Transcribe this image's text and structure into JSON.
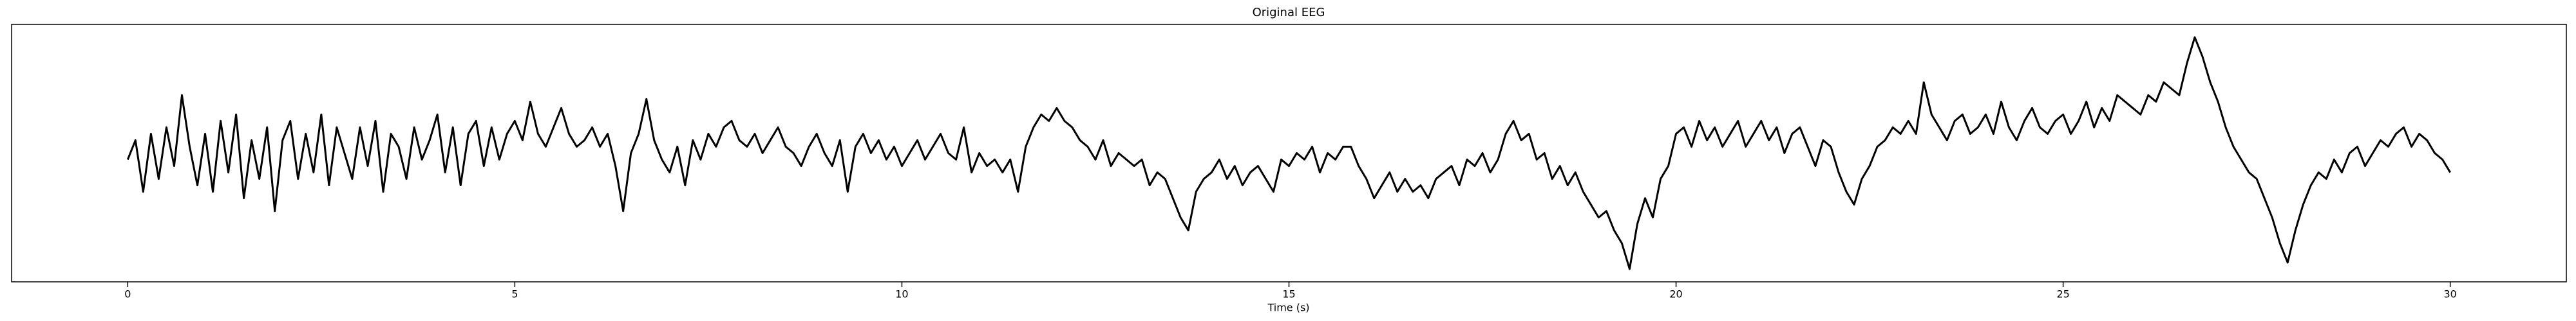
{
  "chart_data": {
    "type": "line",
    "title": "Original EEG",
    "xlabel": "Time (s)",
    "x": [
      0,
      0.1,
      0.2,
      0.3,
      0.4,
      0.5,
      0.6,
      0.7,
      0.8,
      0.9,
      1,
      1.1,
      1.2,
      1.3,
      1.4,
      1.5,
      1.6,
      1.7,
      1.8,
      1.9,
      2,
      2.1,
      2.2,
      2.3,
      2.4,
      2.5,
      2.6,
      2.7,
      2.8,
      2.9,
      3,
      3.1,
      3.2,
      3.3,
      3.4,
      3.5,
      3.6,
      3.7,
      3.8,
      3.9,
      4,
      4.1,
      4.2,
      4.3,
      4.4,
      4.5,
      4.6,
      4.7,
      4.8,
      4.9,
      5,
      5.1,
      5.2,
      5.3,
      5.4,
      5.5,
      5.6,
      5.7,
      5.8,
      5.9,
      6,
      6.1,
      6.2,
      6.3,
      6.4,
      6.5,
      6.6,
      6.7,
      6.8,
      6.9,
      7,
      7.1,
      7.2,
      7.3,
      7.4,
      7.5,
      7.6,
      7.7,
      7.8,
      7.9,
      8,
      8.1,
      8.2,
      8.3,
      8.4,
      8.5,
      8.6,
      8.7,
      8.8,
      8.9,
      9,
      9.1,
      9.2,
      9.3,
      9.4,
      9.5,
      9.6,
      9.7,
      9.8,
      9.9,
      10,
      10.1,
      10.2,
      10.3,
      10.4,
      10.5,
      10.6,
      10.7,
      10.8,
      10.9,
      11,
      11.1,
      11.2,
      11.3,
      11.4,
      11.5,
      11.6,
      11.7,
      11.8,
      11.9,
      12,
      12.1,
      12.2,
      12.3,
      12.4,
      12.5,
      12.6,
      12.7,
      12.8,
      12.9,
      13,
      13.1,
      13.2,
      13.3,
      13.4,
      13.5,
      13.6,
      13.7,
      13.8,
      13.9,
      14,
      14.1,
      14.2,
      14.3,
      14.4,
      14.5,
      14.6,
      14.7,
      14.8,
      14.9,
      15,
      15.1,
      15.2,
      15.3,
      15.4,
      15.5,
      15.6,
      15.7,
      15.8,
      15.9,
      16,
      16.1,
      16.2,
      16.3,
      16.4,
      16.5,
      16.6,
      16.7,
      16.8,
      16.9,
      17,
      17.1,
      17.2,
      17.3,
      17.4,
      17.5,
      17.6,
      17.7,
      17.8,
      17.9,
      18,
      18.1,
      18.2,
      18.3,
      18.4,
      18.5,
      18.6,
      18.7,
      18.8,
      18.9,
      19,
      19.1,
      19.2,
      19.3,
      19.4,
      19.5,
      19.6,
      19.7,
      19.8,
      19.9,
      20,
      20.1,
      20.2,
      20.3,
      20.4,
      20.5,
      20.6,
      20.7,
      20.8,
      20.9,
      21,
      21.1,
      21.2,
      21.3,
      21.4,
      21.5,
      21.6,
      21.7,
      21.8,
      21.9,
      22,
      22.1,
      22.2,
      22.3,
      22.4,
      22.5,
      22.6,
      22.7,
      22.8,
      22.9,
      23,
      23.1,
      23.2,
      23.3,
      23.4,
      23.5,
      23.6,
      23.7,
      23.8,
      23.9,
      24,
      24.1,
      24.2,
      24.3,
      24.4,
      24.5,
      24.6,
      24.7,
      24.8,
      24.9,
      25,
      25.1,
      25.2,
      25.3,
      25.4,
      25.5,
      25.6,
      25.7,
      25.8,
      25.9,
      26,
      26.1,
      26.2,
      26.3,
      26.4,
      26.5,
      26.6,
      26.7,
      26.8,
      26.9,
      27,
      27.1,
      27.2,
      27.3,
      27.4,
      27.5,
      27.6,
      27.7,
      27.8,
      27.9,
      28,
      28.1,
      28.2,
      28.3,
      28.4,
      28.5,
      28.6,
      28.7,
      28.8,
      28.9,
      29,
      29.1,
      29.2,
      29.3,
      29.4,
      29.5,
      29.6,
      29.7,
      29.8,
      29.9,
      30
    ],
    "values": [
      -5,
      10,
      -30,
      15,
      -20,
      20,
      -10,
      45,
      5,
      -25,
      15,
      -30,
      25,
      -15,
      30,
      -35,
      10,
      -20,
      20,
      -45,
      10,
      25,
      -20,
      15,
      -15,
      30,
      -25,
      20,
      0,
      -20,
      20,
      -10,
      25,
      -30,
      15,
      5,
      -20,
      20,
      -5,
      10,
      30,
      -15,
      20,
      -25,
      15,
      25,
      -10,
      20,
      -5,
      15,
      25,
      10,
      40,
      15,
      5,
      20,
      35,
      15,
      5,
      10,
      20,
      5,
      15,
      -10,
      -45,
      0,
      15,
      42,
      10,
      -5,
      -15,
      5,
      -25,
      10,
      -5,
      15,
      5,
      20,
      25,
      10,
      5,
      15,
      0,
      10,
      20,
      5,
      0,
      -10,
      5,
      15,
      0,
      -10,
      10,
      -30,
      5,
      15,
      0,
      10,
      -5,
      5,
      -10,
      0,
      10,
      -5,
      5,
      15,
      0,
      -5,
      20,
      -15,
      0,
      -10,
      -5,
      -15,
      -5,
      -30,
      5,
      20,
      30,
      25,
      35,
      25,
      20,
      10,
      5,
      -5,
      10,
      -10,
      0,
      -5,
      -10,
      -5,
      -25,
      -15,
      -20,
      -35,
      -50,
      -60,
      -30,
      -20,
      -15,
      -5,
      -20,
      -10,
      -25,
      -15,
      -10,
      -20,
      -30,
      -5,
      -10,
      0,
      -5,
      5,
      -15,
      0,
      -5,
      5,
      5,
      -10,
      -20,
      -35,
      -25,
      -15,
      -30,
      -20,
      -30,
      -25,
      -35,
      -20,
      -15,
      -10,
      -25,
      -5,
      -10,
      0,
      -15,
      -5,
      15,
      25,
      10,
      15,
      -5,
      0,
      -20,
      -10,
      -25,
      -15,
      -30,
      -40,
      -50,
      -45,
      -60,
      -70,
      -90,
      -55,
      -35,
      -50,
      -20,
      -10,
      15,
      20,
      5,
      25,
      10,
      20,
      5,
      15,
      25,
      5,
      15,
      25,
      10,
      20,
      0,
      15,
      20,
      5,
      -10,
      10,
      5,
      -15,
      -30,
      -40,
      -20,
      -10,
      5,
      10,
      20,
      15,
      25,
      15,
      55,
      30,
      20,
      10,
      25,
      30,
      15,
      20,
      30,
      15,
      40,
      20,
      10,
      25,
      35,
      20,
      15,
      25,
      30,
      15,
      25,
      40,
      20,
      35,
      25,
      45,
      40,
      35,
      30,
      45,
      40,
      55,
      50,
      45,
      70,
      90,
      75,
      55,
      40,
      20,
      5,
      -5,
      -15,
      -20,
      -35,
      -50,
      -70,
      -85,
      -60,
      -40,
      -25,
      -15,
      -20,
      -5,
      -15,
      0,
      5,
      -10,
      0,
      10,
      5,
      15,
      20,
      5,
      15,
      10,
      0,
      -5,
      -15
    ],
    "color": "#000000",
    "xlim": [
      -1.5,
      31.5
    ],
    "ylim": [
      -100,
      100
    ],
    "xticks": [
      0,
      5,
      10,
      15,
      20,
      25,
      30
    ]
  }
}
